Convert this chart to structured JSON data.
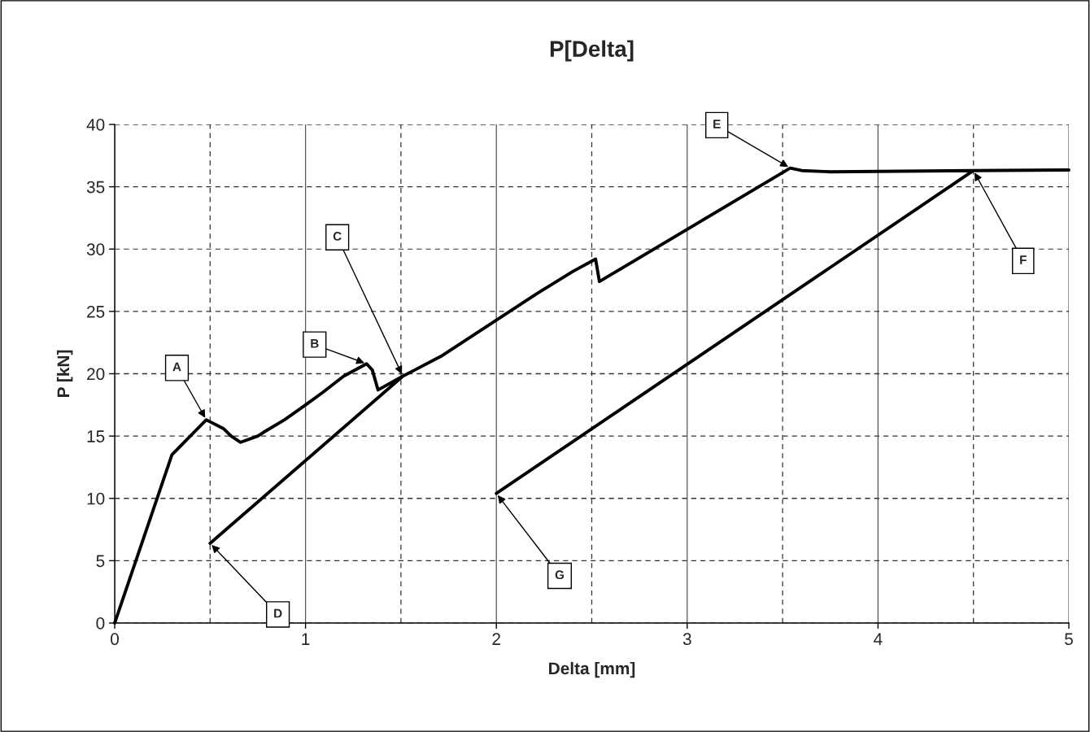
{
  "chart_data": {
    "type": "line",
    "title": "P[Delta]",
    "xlabel": "Delta [mm]",
    "ylabel": "P [kN]",
    "series": [
      {
        "color": "#000000",
        "x": [
          0,
          0.3,
          0.48,
          0.57,
          0.61,
          0.66,
          0.75,
          0.78,
          0.89,
          1.0,
          1.09,
          1.2,
          1.32,
          1.35,
          1.38,
          1.51,
          0.5,
          1.51,
          1.71,
          2.21,
          2.4,
          2.52,
          2.54,
          3.54,
          3.6,
          3.75,
          4.5,
          2.0,
          4.5,
          5.0
        ],
        "values": [
          0,
          13.5,
          16.3,
          15.6,
          15.0,
          14.5,
          15.0,
          15.3,
          16.3,
          17.5,
          18.5,
          19.8,
          20.8,
          20.3,
          18.7,
          19.8,
          6.4,
          19.8,
          21.4,
          26.4,
          28.2,
          29.2,
          27.4,
          36.5,
          36.3,
          36.2,
          36.3,
          10.4,
          36.3,
          36.35
        ]
      }
    ],
    "xlim": [
      0,
      5
    ],
    "ylim": [
      0,
      40
    ],
    "xticks": [
      0,
      1,
      2,
      3,
      4,
      5
    ],
    "yticks": [
      0,
      5,
      10,
      15,
      20,
      25,
      30,
      35,
      40
    ],
    "grid": true,
    "line_style": "solid",
    "marker": "none",
    "annotations": [
      {
        "text": "A",
        "x": 0.48,
        "y": 16.3
      },
      {
        "text": "B",
        "x": 1.32,
        "y": 20.8
      },
      {
        "text": "C",
        "x": 1.51,
        "y": 19.8
      },
      {
        "text": "D",
        "x": 0.5,
        "y": 6.4
      },
      {
        "text": "E",
        "x": 3.54,
        "y": 36.5
      },
      {
        "text": "F",
        "x": 4.5,
        "y": 36.3
      },
      {
        "text": "G",
        "x": 2.0,
        "y": 10.4
      }
    ]
  }
}
